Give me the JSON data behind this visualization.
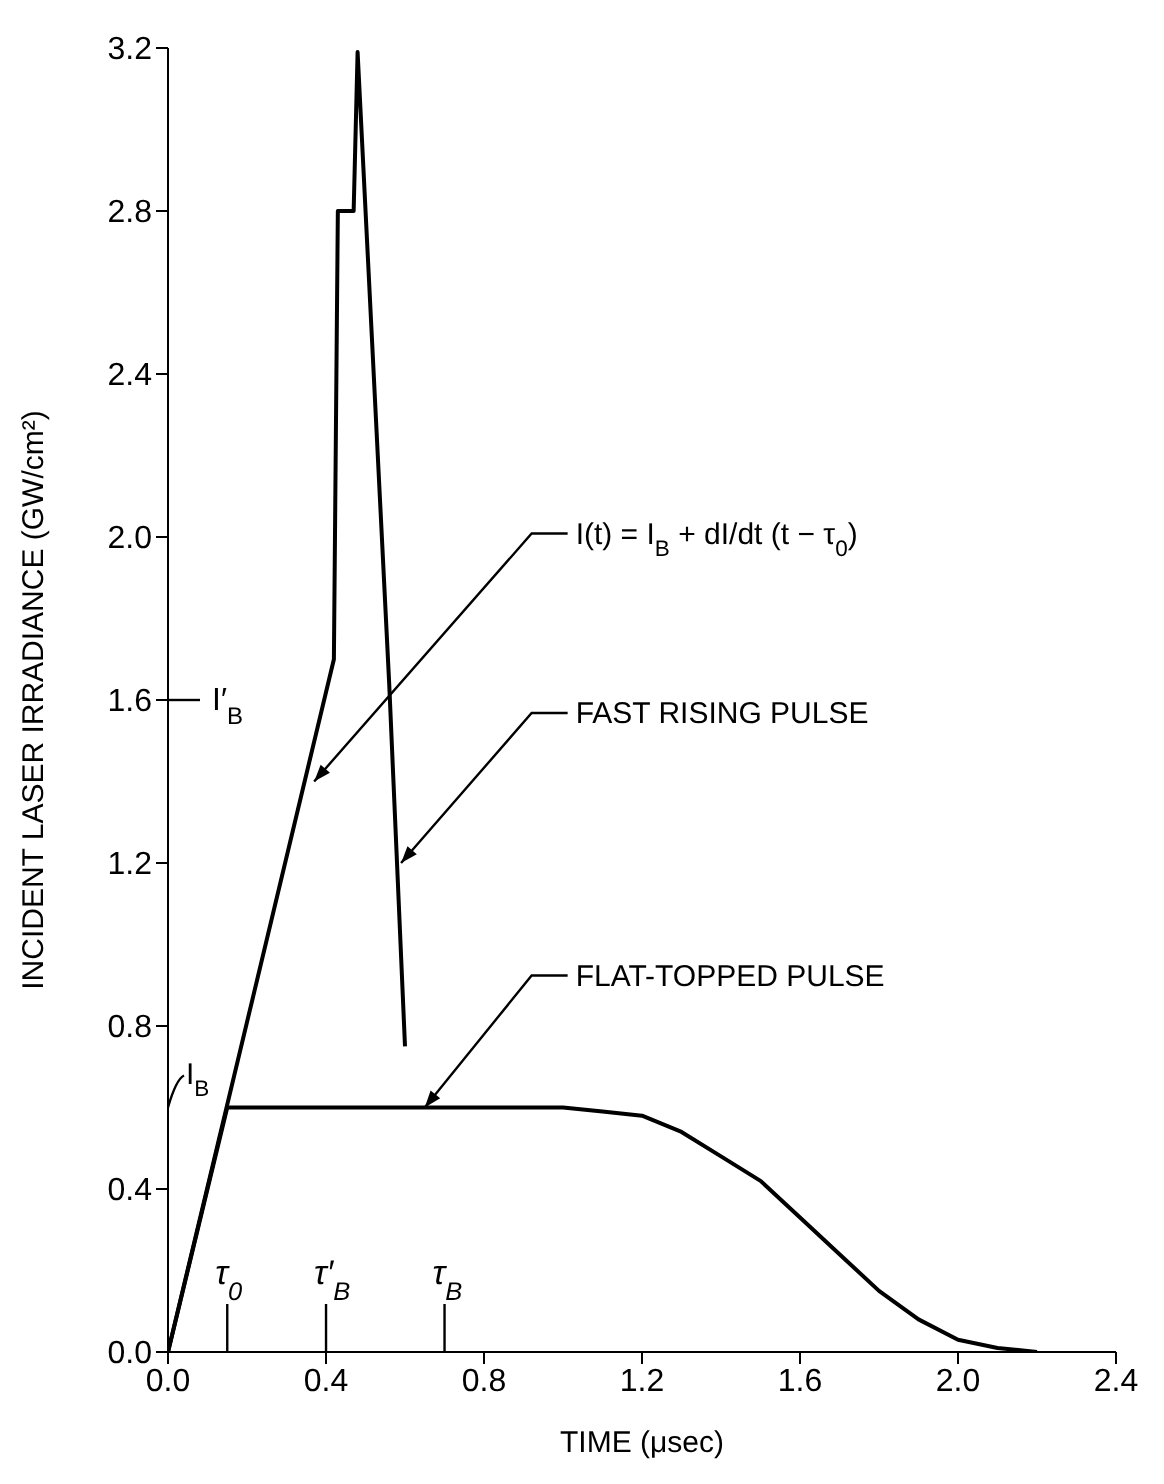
{
  "chart_data": {
    "type": "line",
    "xlabel": "TIME (μsec)",
    "ylabel": "INCIDENT LASER IRRADIANCE (GW/cm²)",
    "xlim": [
      0,
      2.4
    ],
    "ylim": [
      0,
      3.2
    ],
    "xticks": [
      {
        "value": 0,
        "label": "0.0"
      },
      0.4,
      0.8,
      1.2,
      1.6,
      {
        "value": 2,
        "label": "2.0"
      },
      2.4
    ],
    "yticks": [
      {
        "value": 0,
        "label": "0.0"
      },
      0.4,
      0.8,
      1.2,
      1.6,
      {
        "value": 2,
        "label": "2.0"
      },
      2.4,
      2.8,
      3.2
    ],
    "line_style": "solid",
    "series": [
      {
        "color": "#000000",
        "x": [
          0,
          0.42,
          0.43,
          0.47,
          0.48,
          0.56,
          0.6
        ],
        "values": [
          0,
          1.7,
          2.8,
          2.8,
          3.19,
          1.64,
          0.75
        ]
      },
      {
        "color": "#000000",
        "x": [
          0,
          0.15,
          1.0,
          1.1,
          1.2,
          1.3,
          1.4,
          1.5,
          1.6,
          1.7,
          1.8,
          1.9,
          2.0,
          2.1,
          2.2
        ],
        "values": [
          0,
          0.6,
          0.6,
          0.59,
          0.58,
          0.54,
          0.48,
          0.42,
          0.33,
          0.24,
          0.15,
          0.08,
          0.03,
          0.01,
          0
        ]
      }
    ],
    "annotations": [
      {
        "text": "I(t) = I$_{B}$ + dI/dt (t − τ$_{0}$)",
        "x": 0.37,
        "y": 1.4
      },
      {
        "text": "FAST RISING PULSE",
        "x": 0.59,
        "y": 1.2
      },
      {
        "text": "FLAT-TOPPED PULSE",
        "x": 0.65,
        "y": 0.6
      },
      "I′$_{B}$",
      "I$_{B}$",
      "τ$_{0}$",
      "τ′$_{B}$",
      "τ$_{B}$"
    ]
  }
}
